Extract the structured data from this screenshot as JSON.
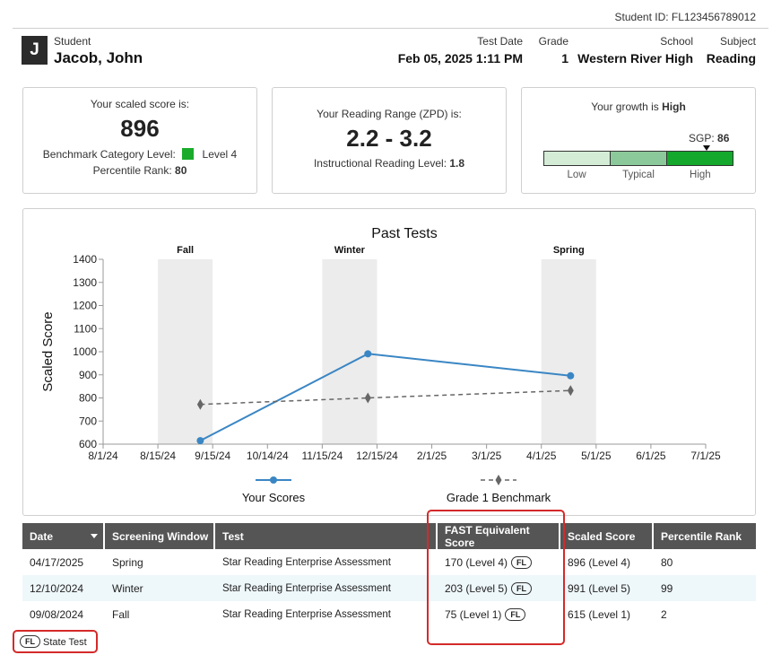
{
  "header": {
    "student_id": "Student ID: FL123456789012",
    "avatar_letter": "J",
    "student_label": "Student",
    "student_name": "Jacob, John",
    "test_date_label": "Test Date",
    "test_date": "Feb 05, 2025 1:11 PM",
    "grade_label": "Grade",
    "grade": "1",
    "school_label": "School",
    "school": "Western River High",
    "subject_label": "Subject",
    "subject": "Reading"
  },
  "score_card": {
    "heading": "Your scaled score is:",
    "score": "896",
    "benchmark_label": "Benchmark Category Level:",
    "benchmark_level": "Level 4",
    "benchmark_color": "#1aab2c",
    "percentile_label": "Percentile Rank:",
    "percentile": "80"
  },
  "zpd_card": {
    "heading": "Your Reading Range (ZPD) is:",
    "range": "2.2 - 3.2",
    "instr_label": "Instructional Reading Level:",
    "instr_level": "1.8"
  },
  "growth_card": {
    "heading_prefix": "Your growth is ",
    "heading_value": "High",
    "sgp_label": "SGP:",
    "sgp": "86",
    "segments": [
      {
        "label": "Low",
        "color": "#d4ecd6",
        "share": 0.35
      },
      {
        "label": "Typical",
        "color": "#8cc99a",
        "share": 0.3
      },
      {
        "label": "High",
        "color": "#14a82c",
        "share": 0.35
      }
    ]
  },
  "chart_data": {
    "type": "line",
    "title": "Past Tests",
    "ylabel": "Scaled Score",
    "ylim": [
      600,
      1400
    ],
    "yticks": [
      600,
      700,
      800,
      900,
      1000,
      1100,
      1200,
      1300,
      1400
    ],
    "xticks": [
      "8/1/24",
      "8/15/24",
      "9/15/24",
      "10/14/24",
      "11/15/24",
      "12/15/24",
      "2/1/25",
      "3/1/25",
      "4/1/25",
      "5/1/25",
      "6/1/25",
      "7/1/25"
    ],
    "windows": [
      {
        "name": "Fall",
        "from": "8/15/24",
        "to": "9/15/24"
      },
      {
        "name": "Winter",
        "from": "11/15/24",
        "to": "12/15/24"
      },
      {
        "name": "Spring",
        "from": "4/1/25",
        "to": "5/1/25"
      }
    ],
    "series": [
      {
        "name": "Your Scores",
        "color": "#3a86c4",
        "style": "solid",
        "points": [
          {
            "x": "9/8/24",
            "y": 615
          },
          {
            "x": "12/10/24",
            "y": 991
          },
          {
            "x": "4/17/25",
            "y": 896
          }
        ]
      },
      {
        "name": "Grade 1 Benchmark",
        "color": "#666666",
        "style": "dashed",
        "points": [
          {
            "x": "9/8/24",
            "y": 772
          },
          {
            "x": "12/10/24",
            "y": 800
          },
          {
            "x": "4/17/25",
            "y": 832
          }
        ]
      }
    ],
    "grid": false,
    "legend": "bottom"
  },
  "table": {
    "headers": [
      "Date",
      "Screening Window",
      "Test",
      "FAST Equivalent Score",
      "Scaled Score",
      "Percentile Rank"
    ],
    "rows": [
      {
        "date": "04/17/2025",
        "window": "Spring",
        "test": "Star Reading Enterprise Assessment",
        "fast": "170 (Level 4)",
        "badge": "FL",
        "scaled": "896 (Level 4)",
        "pr": "80"
      },
      {
        "date": "12/10/2024",
        "window": "Winter",
        "test": "Star Reading Enterprise Assessment",
        "fast": "203 (Level 5)",
        "badge": "FL",
        "scaled": "991 (Level 5)",
        "pr": "99"
      },
      {
        "date": "09/08/2024",
        "window": "Fall",
        "test": "Star Reading Enterprise Assessment",
        "fast": "75 (Level 1)",
        "badge": "FL",
        "scaled": "615 (Level 1)",
        "pr": "2"
      }
    ]
  },
  "legend_note": {
    "badge": "FL",
    "text": "State Test"
  }
}
